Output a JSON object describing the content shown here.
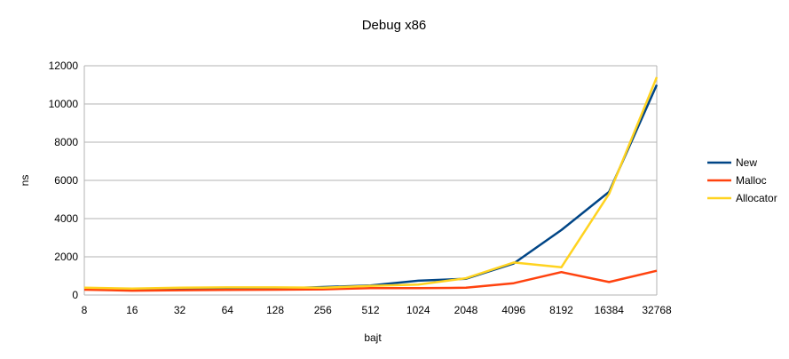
{
  "chart_data": {
    "type": "line",
    "title": "Debug x86",
    "xlabel": "bajt",
    "ylabel": "ns",
    "categories": [
      "8",
      "16",
      "32",
      "64",
      "128",
      "256",
      "512",
      "1024",
      "2048",
      "4096",
      "8192",
      "16384",
      "32768"
    ],
    "ylim": [
      0,
      12000
    ],
    "yticks": [
      0,
      2000,
      4000,
      6000,
      8000,
      10000,
      12000
    ],
    "grid": "horizontal",
    "legend": "right",
    "series": [
      {
        "name": "New",
        "color": "#004586",
        "values": [
          320,
          260,
          300,
          320,
          330,
          420,
          500,
          750,
          850,
          1650,
          3400,
          5400,
          11000
        ]
      },
      {
        "name": "Malloc",
        "color": "#ff420e",
        "values": [
          280,
          230,
          250,
          270,
          280,
          300,
          360,
          360,
          380,
          620,
          1200,
          680,
          1270
        ]
      },
      {
        "name": "Allocator",
        "color": "#ffd320",
        "values": [
          380,
          340,
          380,
          400,
          400,
          380,
          480,
          550,
          880,
          1700,
          1450,
          5300,
          11400
        ]
      }
    ]
  }
}
